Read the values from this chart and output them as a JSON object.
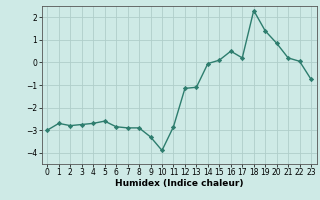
{
  "x": [
    0,
    1,
    2,
    3,
    4,
    5,
    6,
    7,
    8,
    9,
    10,
    11,
    12,
    13,
    14,
    15,
    16,
    17,
    18,
    19,
    20,
    21,
    22,
    23
  ],
  "y": [
    -3.0,
    -2.7,
    -2.8,
    -2.75,
    -2.7,
    -2.6,
    -2.85,
    -2.9,
    -2.9,
    -3.3,
    -3.9,
    -2.85,
    -1.15,
    -1.1,
    -0.05,
    0.1,
    0.5,
    0.2,
    2.3,
    1.4,
    0.85,
    0.2,
    0.05,
    -0.75
  ],
  "xlim": [
    -0.5,
    23.5
  ],
  "ylim": [
    -4.5,
    2.5
  ],
  "yticks": [
    -4,
    -3,
    -2,
    -1,
    0,
    1,
    2
  ],
  "xticks": [
    0,
    1,
    2,
    3,
    4,
    5,
    6,
    7,
    8,
    9,
    10,
    11,
    12,
    13,
    14,
    15,
    16,
    17,
    18,
    19,
    20,
    21,
    22,
    23
  ],
  "xlabel": "Humidex (Indice chaleur)",
  "line_color": "#2d7d6e",
  "marker": "D",
  "marker_size": 2.2,
  "bg_color": "#ceeae6",
  "grid_color": "#b0ceca",
  "line_width": 1.0,
  "tick_fontsize": 5.5,
  "xlabel_fontsize": 6.5
}
